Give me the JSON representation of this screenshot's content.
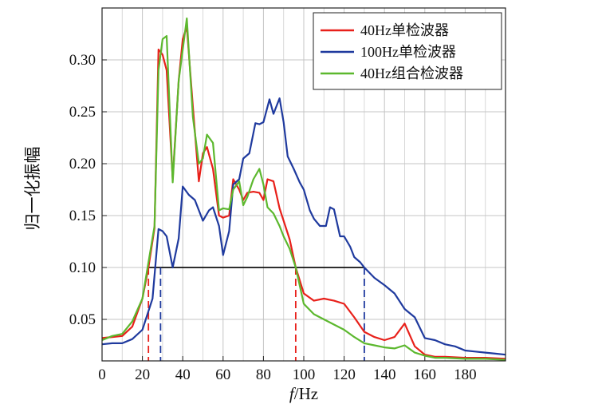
{
  "chart_data": {
    "type": "line",
    "xlabel_italic": "f",
    "xlabel_rest": "/Hz",
    "ylabel": "归一化振幅",
    "xlim": [
      0,
      200
    ],
    "ylim": [
      0.01,
      0.35
    ],
    "xticks": [
      "0",
      "20",
      "40",
      "60",
      "80",
      "100",
      "120",
      "140",
      "160",
      "180"
    ],
    "yticks": [
      "0.05",
      "0.10",
      "0.15",
      "0.20",
      "0.25",
      "0.30"
    ],
    "grid": true,
    "legend_position": "top-right",
    "threshold": 0.1,
    "series": [
      {
        "name": "40Hz单检波器",
        "color": "#e8201a",
        "x": [
          0,
          5,
          10,
          15,
          20,
          23,
          26,
          28,
          30,
          32,
          35,
          38,
          40,
          42,
          45,
          48,
          50,
          52,
          55,
          58,
          60,
          63,
          65,
          68,
          70,
          72,
          75,
          78,
          80,
          82,
          85,
          88,
          90,
          93,
          96,
          100,
          105,
          110,
          115,
          120,
          125,
          130,
          135,
          140,
          145,
          150,
          155,
          160,
          165,
          170,
          180,
          190,
          200
        ],
        "y": [
          0.032,
          0.033,
          0.034,
          0.043,
          0.07,
          0.1,
          0.138,
          0.31,
          0.305,
          0.29,
          0.185,
          0.28,
          0.32,
          0.332,
          0.255,
          0.183,
          0.21,
          0.216,
          0.195,
          0.15,
          0.148,
          0.15,
          0.185,
          0.175,
          0.165,
          0.172,
          0.173,
          0.172,
          0.165,
          0.185,
          0.183,
          0.157,
          0.145,
          0.127,
          0.1,
          0.075,
          0.068,
          0.07,
          0.068,
          0.065,
          0.052,
          0.038,
          0.033,
          0.03,
          0.033,
          0.046,
          0.024,
          0.016,
          0.014,
          0.014,
          0.013,
          0.013,
          0.012
        ]
      },
      {
        "name": "100Hz单检波器",
        "color": "#1f3a9e",
        "x": [
          0,
          5,
          10,
          15,
          20,
          25,
          28,
          30,
          32,
          35,
          38,
          40,
          43,
          46,
          50,
          53,
          55,
          58,
          60,
          63,
          65,
          68,
          70,
          73,
          76,
          78,
          80,
          83,
          85,
          88,
          90,
          92,
          95,
          98,
          100,
          103,
          105,
          108,
          111,
          113,
          115,
          118,
          120,
          123,
          125,
          128,
          130,
          135,
          140,
          145,
          150,
          155,
          160,
          165,
          170,
          175,
          180,
          185,
          190,
          195,
          200
        ],
        "y": [
          0.026,
          0.027,
          0.027,
          0.031,
          0.04,
          0.07,
          0.137,
          0.135,
          0.13,
          0.1,
          0.128,
          0.178,
          0.17,
          0.165,
          0.145,
          0.155,
          0.158,
          0.14,
          0.112,
          0.135,
          0.18,
          0.185,
          0.205,
          0.21,
          0.239,
          0.238,
          0.24,
          0.262,
          0.248,
          0.263,
          0.24,
          0.207,
          0.195,
          0.182,
          0.175,
          0.155,
          0.147,
          0.14,
          0.14,
          0.158,
          0.156,
          0.13,
          0.13,
          0.12,
          0.11,
          0.105,
          0.1,
          0.09,
          0.083,
          0.075,
          0.06,
          0.052,
          0.032,
          0.03,
          0.026,
          0.024,
          0.02,
          0.019,
          0.018,
          0.017,
          0.016
        ]
      },
      {
        "name": "40Hz组合检波器",
        "color": "#5cb82e",
        "x": [
          0,
          5,
          10,
          15,
          20,
          23,
          26,
          28,
          30,
          32,
          35,
          38,
          40,
          42,
          45,
          48,
          50,
          52,
          55,
          58,
          60,
          63,
          65,
          68,
          70,
          72,
          75,
          78,
          80,
          82,
          85,
          88,
          90,
          93,
          96,
          100,
          105,
          110,
          115,
          120,
          125,
          130,
          135,
          140,
          145,
          150,
          155,
          160,
          165,
          170,
          180,
          190,
          200
        ],
        "y": [
          0.03,
          0.034,
          0.036,
          0.048,
          0.07,
          0.105,
          0.14,
          0.29,
          0.32,
          0.323,
          0.182,
          0.28,
          0.31,
          0.34,
          0.245,
          0.2,
          0.205,
          0.228,
          0.22,
          0.155,
          0.157,
          0.156,
          0.175,
          0.183,
          0.16,
          0.168,
          0.185,
          0.195,
          0.18,
          0.158,
          0.152,
          0.14,
          0.13,
          0.118,
          0.1,
          0.065,
          0.055,
          0.05,
          0.045,
          0.04,
          0.033,
          0.027,
          0.025,
          0.023,
          0.022,
          0.025,
          0.018,
          0.015,
          0.013,
          0.013,
          0.012,
          0.012,
          0.011
        ]
      }
    ],
    "markers": [
      {
        "x": 23,
        "color": "#e8201a"
      },
      {
        "x": 29,
        "color": "#1f3a9e"
      },
      {
        "x": 96,
        "color": "#e8201a"
      },
      {
        "x": 130,
        "color": "#1f3a9e"
      }
    ]
  }
}
